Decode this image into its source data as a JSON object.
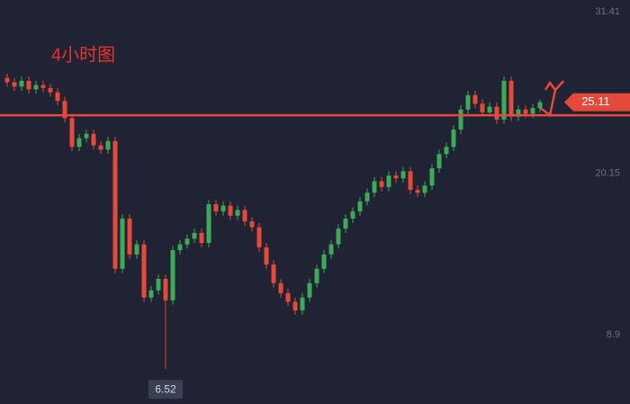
{
  "chart_data": {
    "type": "candlestick",
    "title": "4小时图",
    "open": [
      26.8,
      26.5,
      26.2,
      26.6,
      26.0,
      26.3,
      26.1,
      25.8,
      25.2,
      24.0,
      22.0,
      22.6,
      22.9,
      22.1,
      21.8,
      22.4,
      13.5,
      17.0,
      14.5,
      15.2,
      11.5,
      12.0,
      12.8,
      11.3,
      14.8,
      15.2,
      15.6,
      16.0,
      15.3,
      18.0,
      17.5,
      17.9,
      17.2,
      17.6,
      16.8,
      16.4,
      15.0,
      13.8,
      12.5,
      11.8,
      11.2,
      10.6,
      11.5,
      12.5,
      13.5,
      14.5,
      15.2,
      16.3,
      17.0,
      17.5,
      18.2,
      18.8,
      19.6,
      19.2,
      20.0,
      19.8,
      20.3,
      19.0,
      18.8,
      19.3,
      20.5,
      21.5,
      22.0,
      23.2,
      24.6,
      25.6,
      25.0,
      24.4,
      24.8,
      23.9,
      26.6,
      24.1,
      24.6,
      24.3,
      24.7
    ],
    "high": [
      27.1,
      26.8,
      26.9,
      26.9,
      26.6,
      26.6,
      26.4,
      26.1,
      25.5,
      24.3,
      22.9,
      23.2,
      23.2,
      22.4,
      22.7,
      22.7,
      17.3,
      17.3,
      15.5,
      15.5,
      12.3,
      13.1,
      13.1,
      15.1,
      15.5,
      15.9,
      16.3,
      16.3,
      18.3,
      18.3,
      18.2,
      18.2,
      17.9,
      17.9,
      17.1,
      16.7,
      15.3,
      14.1,
      12.8,
      12.1,
      11.5,
      11.8,
      12.8,
      13.8,
      14.8,
      15.5,
      16.6,
      17.3,
      17.8,
      18.5,
      19.1,
      19.9,
      19.9,
      20.3,
      20.3,
      20.6,
      20.6,
      19.3,
      19.6,
      20.8,
      21.8,
      22.3,
      23.5,
      24.9,
      25.9,
      25.9,
      25.3,
      25.1,
      25.1,
      26.9,
      26.9,
      24.9,
      24.9,
      25.0,
      25.3
    ],
    "low": [
      26.2,
      25.9,
      25.9,
      25.7,
      25.7,
      25.8,
      25.5,
      24.9,
      23.7,
      21.7,
      21.7,
      22.3,
      21.8,
      21.5,
      21.5,
      13.2,
      13.2,
      14.2,
      14.2,
      11.2,
      11.2,
      11.7,
      6.52,
      11.0,
      14.5,
      14.9,
      15.3,
      15.0,
      15.0,
      17.2,
      17.2,
      16.9,
      16.9,
      16.5,
      16.1,
      14.7,
      13.5,
      12.2,
      11.5,
      10.9,
      10.3,
      10.3,
      11.2,
      12.2,
      13.2,
      14.2,
      14.9,
      16.0,
      16.7,
      17.2,
      17.9,
      18.5,
      18.9,
      18.9,
      19.5,
      19.5,
      18.7,
      18.5,
      18.5,
      19.0,
      20.2,
      21.2,
      21.7,
      22.9,
      24.3,
      24.7,
      24.1,
      24.1,
      23.6,
      23.6,
      23.8,
      23.8,
      24.0,
      24.0,
      24.4
    ],
    "close": [
      26.5,
      26.2,
      26.6,
      26.0,
      26.3,
      26.1,
      25.8,
      25.2,
      24.0,
      22.0,
      22.6,
      22.9,
      22.1,
      21.8,
      22.4,
      13.5,
      17.0,
      14.5,
      15.2,
      11.5,
      12.0,
      12.8,
      11.3,
      14.8,
      15.2,
      15.6,
      16.0,
      15.3,
      18.0,
      17.5,
      17.9,
      17.2,
      17.6,
      16.8,
      16.4,
      15.0,
      13.8,
      12.5,
      11.8,
      11.2,
      10.6,
      11.5,
      12.5,
      13.5,
      14.5,
      15.2,
      16.3,
      17.0,
      17.5,
      18.2,
      18.8,
      19.6,
      19.2,
      20.0,
      19.8,
      20.3,
      19.0,
      18.8,
      19.3,
      20.5,
      21.5,
      22.0,
      23.2,
      24.6,
      25.6,
      25.0,
      24.4,
      24.8,
      23.9,
      26.6,
      24.1,
      24.6,
      24.3,
      24.7,
      25.11
    ],
    "low_label_index": 22,
    "hline": 24.2,
    "up_color": "#3daa5a",
    "down_color": "#e5493a",
    "ylim": [
      4.08,
      32.23
    ],
    "yticks": [
      8.9,
      20.15,
      31.41
    ]
  }
}
